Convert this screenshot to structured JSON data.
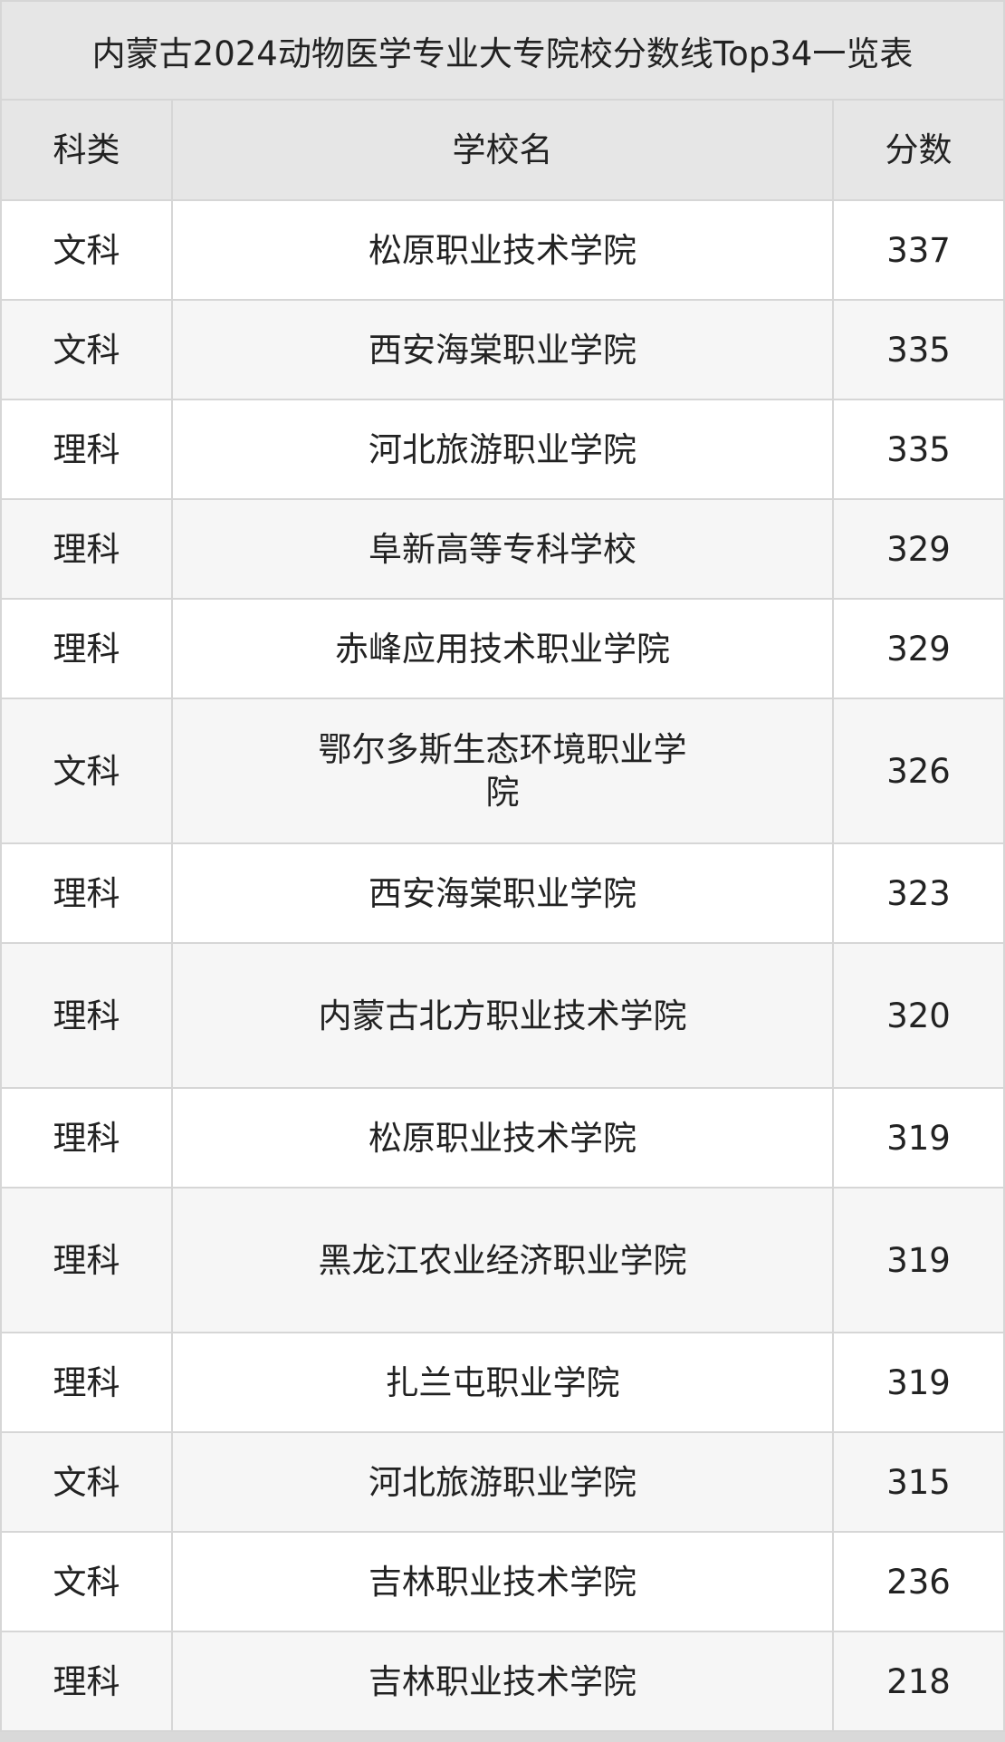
{
  "title": "内蒙古2024动物医学专业大专院校分数线Top34一览表",
  "headers": [
    "科类",
    "学校名",
    "分数"
  ],
  "rows": [
    {
      "type": "文科",
      "school": "松原职业技术学院",
      "score": "337"
    },
    {
      "type": "文科",
      "school": "西安海棠职业学院",
      "score": "335"
    },
    {
      "type": "理科",
      "school": "河北旅游职业学院",
      "score": "335"
    },
    {
      "type": "理科",
      "school": "阜新高等专科学校",
      "score": "329"
    },
    {
      "type": "理科",
      "school": "赤峰应用技术职业学院",
      "score": "329"
    },
    {
      "type": "文科",
      "school": "鄂尔多斯生态环境职业学院",
      "score": "326"
    },
    {
      "type": "理科",
      "school": "西安海棠职业学院",
      "score": "323"
    },
    {
      "type": "理科",
      "school": "内蒙古北方职业技术学院",
      "score": "320"
    },
    {
      "type": "理科",
      "school": "松原职业技术学院",
      "score": "319"
    },
    {
      "type": "理科",
      "school": "黑龙江农业经济职业学院",
      "score": "319"
    },
    {
      "type": "理科",
      "school": "扎兰屯职业学院",
      "score": "319"
    },
    {
      "type": "文科",
      "school": "河北旅游职业学院",
      "score": "315"
    },
    {
      "type": "文科",
      "school": "吉林职业技术学院",
      "score": "236"
    },
    {
      "type": "理科",
      "school": "吉林职业技术学院",
      "score": "218"
    }
  ]
}
